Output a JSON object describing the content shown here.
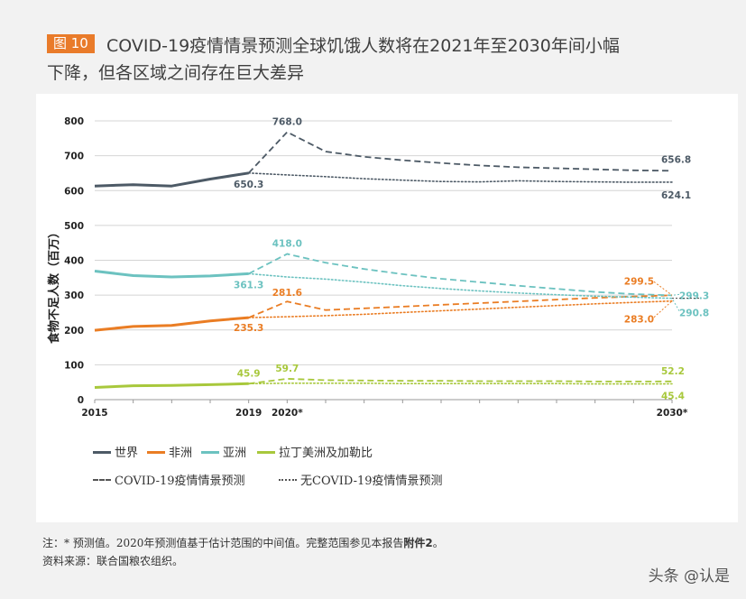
{
  "figure": {
    "badge": "图 10",
    "title_line1": "COVID-19疫情情景预测全球饥饿人数将在2021年至2030年间小幅",
    "title_line2": "下降，但各区域之间存在巨大差异"
  },
  "legend": {
    "world": "世界",
    "africa": "非洲",
    "asia": "亚洲",
    "latam": "拉丁美洲及加勒比",
    "covid": "COVID-19疫情情景预测",
    "nocovid": "无COVID-19疫情情景预测"
  },
  "footer": {
    "note_prefix": "注：* 预测值。2020年预测值基于估计范围的中间值。完整范围参见本报告",
    "note_bold": "附件2",
    "note_suffix": "。",
    "source": "资料来源：联合国粮农组织。"
  },
  "watermark": "头条 @认是",
  "colors": {
    "world": "#4d5a66",
    "africa": "#ea7d24",
    "asia": "#6cc2c0",
    "latam": "#a8c83c",
    "badge": "#e97b2a"
  },
  "chart_data": {
    "type": "line",
    "ylabel": "食物不足人数（百万）",
    "ylim": [
      0,
      800
    ],
    "yticks": [
      0,
      100,
      200,
      300,
      400,
      500,
      600,
      700,
      800
    ],
    "xlim": [
      2015,
      2030
    ],
    "xticks": [
      {
        "value": 2015,
        "label": "2015"
      },
      {
        "value": 2019,
        "label": "2019"
      },
      {
        "value": 2020,
        "label": "2020*"
      },
      {
        "value": 2030,
        "label": "2030*"
      }
    ],
    "series": [
      {
        "name": "世界",
        "key": "world",
        "historical": [
          [
            2015,
            613
          ],
          [
            2016,
            617
          ],
          [
            2017,
            613
          ],
          [
            2018,
            633
          ],
          [
            2019,
            650.3
          ]
        ],
        "covid": [
          [
            2019,
            650.3
          ],
          [
            2020,
            768.0
          ],
          [
            2021,
            712
          ],
          [
            2022,
            697
          ],
          [
            2023,
            687
          ],
          [
            2024,
            679
          ],
          [
            2025,
            672
          ],
          [
            2026,
            667
          ],
          [
            2027,
            664
          ],
          [
            2028,
            661
          ],
          [
            2029,
            658
          ],
          [
            2030,
            656.8
          ]
        ],
        "nocovid": [
          [
            2019,
            650.3
          ],
          [
            2020,
            645
          ],
          [
            2021,
            640
          ],
          [
            2022,
            634
          ],
          [
            2023,
            630
          ],
          [
            2024,
            626
          ],
          [
            2025,
            625
          ],
          [
            2026,
            628
          ],
          [
            2027,
            626
          ],
          [
            2028,
            625
          ],
          [
            2029,
            624
          ],
          [
            2030,
            624.1
          ]
        ]
      },
      {
        "name": "非洲",
        "key": "africa",
        "historical": [
          [
            2015,
            199
          ],
          [
            2016,
            210
          ],
          [
            2017,
            213
          ],
          [
            2018,
            226
          ],
          [
            2019,
            235.3
          ]
        ],
        "covid": [
          [
            2019,
            235.3
          ],
          [
            2020,
            281.6
          ],
          [
            2021,
            257
          ],
          [
            2022,
            262
          ],
          [
            2023,
            267
          ],
          [
            2024,
            272
          ],
          [
            2025,
            277
          ],
          [
            2026,
            282
          ],
          [
            2027,
            287
          ],
          [
            2028,
            292
          ],
          [
            2029,
            296
          ],
          [
            2030,
            299.5
          ]
        ],
        "nocovid": [
          [
            2019,
            235.3
          ],
          [
            2020,
            238
          ],
          [
            2021,
            241
          ],
          [
            2022,
            245
          ],
          [
            2023,
            250
          ],
          [
            2024,
            255
          ],
          [
            2025,
            260
          ],
          [
            2026,
            265
          ],
          [
            2027,
            270
          ],
          [
            2028,
            275
          ],
          [
            2029,
            279
          ],
          [
            2030,
            283.0
          ]
        ]
      },
      {
        "name": "亚洲",
        "key": "asia",
        "historical": [
          [
            2015,
            369
          ],
          [
            2016,
            356
          ],
          [
            2017,
            352
          ],
          [
            2018,
            355
          ],
          [
            2019,
            361.3
          ]
        ],
        "covid": [
          [
            2019,
            361.3
          ],
          [
            2020,
            418.0
          ],
          [
            2021,
            393
          ],
          [
            2022,
            375
          ],
          [
            2023,
            360
          ],
          [
            2024,
            347
          ],
          [
            2025,
            337
          ],
          [
            2026,
            327
          ],
          [
            2027,
            318
          ],
          [
            2028,
            309
          ],
          [
            2029,
            303
          ],
          [
            2030,
            299.3
          ]
        ],
        "nocovid": [
          [
            2019,
            361.3
          ],
          [
            2020,
            352
          ],
          [
            2021,
            346
          ],
          [
            2022,
            337
          ],
          [
            2023,
            327
          ],
          [
            2024,
            319
          ],
          [
            2025,
            312
          ],
          [
            2026,
            306
          ],
          [
            2027,
            301
          ],
          [
            2028,
            297
          ],
          [
            2029,
            294
          ],
          [
            2030,
            290.8
          ]
        ]
      },
      {
        "name": "拉丁美洲及加勒比",
        "key": "latam",
        "historical": [
          [
            2015,
            35
          ],
          [
            2016,
            40
          ],
          [
            2017,
            41
          ],
          [
            2018,
            43
          ],
          [
            2019,
            45.9
          ]
        ],
        "covid": [
          [
            2019,
            45.9
          ],
          [
            2020,
            59.7
          ],
          [
            2021,
            56
          ],
          [
            2022,
            55
          ],
          [
            2023,
            54
          ],
          [
            2024,
            54
          ],
          [
            2025,
            53
          ],
          [
            2026,
            53
          ],
          [
            2027,
            53
          ],
          [
            2028,
            52
          ],
          [
            2029,
            52
          ],
          [
            2030,
            52.2
          ]
        ],
        "nocovid": [
          [
            2019,
            45.9
          ],
          [
            2020,
            47
          ],
          [
            2021,
            47
          ],
          [
            2022,
            47
          ],
          [
            2023,
            46
          ],
          [
            2024,
            46
          ],
          [
            2025,
            46
          ],
          [
            2026,
            46
          ],
          [
            2027,
            46
          ],
          [
            2028,
            45
          ],
          [
            2029,
            45
          ],
          [
            2030,
            45.4
          ]
        ]
      }
    ],
    "labels": [
      {
        "text": "768.0",
        "series": "world",
        "x": 2020,
        "y": 768.0
      },
      {
        "text": "650.3",
        "series": "world",
        "x": 2019,
        "y": 650.3
      },
      {
        "text": "656.8",
        "series": "world",
        "x": 2030,
        "y": 656.8
      },
      {
        "text": "624.1",
        "series": "world",
        "x": 2030,
        "y": 624.1
      },
      {
        "text": "418.0",
        "series": "asia",
        "x": 2020,
        "y": 418.0
      },
      {
        "text": "361.3",
        "series": "asia",
        "x": 2019,
        "y": 361.3
      },
      {
        "text": "299.3",
        "series": "asia",
        "x": 2030,
        "y": 299.3
      },
      {
        "text": "290.8",
        "series": "asia",
        "x": 2030,
        "y": 290.8
      },
      {
        "text": "281.6",
        "series": "africa",
        "x": 2020,
        "y": 281.6
      },
      {
        "text": "235.3",
        "series": "africa",
        "x": 2019,
        "y": 235.3
      },
      {
        "text": "299.5",
        "series": "africa",
        "x": 2030,
        "y": 299.5
      },
      {
        "text": "283.0",
        "series": "africa",
        "x": 2030,
        "y": 283.0
      },
      {
        "text": "59.7",
        "series": "latam",
        "x": 2020,
        "y": 59.7
      },
      {
        "text": "45.9",
        "series": "latam",
        "x": 2019,
        "y": 45.9
      },
      {
        "text": "52.2",
        "series": "latam",
        "x": 2030,
        "y": 52.2
      },
      {
        "text": "45.4",
        "series": "latam",
        "x": 2030,
        "y": 45.4
      }
    ]
  }
}
